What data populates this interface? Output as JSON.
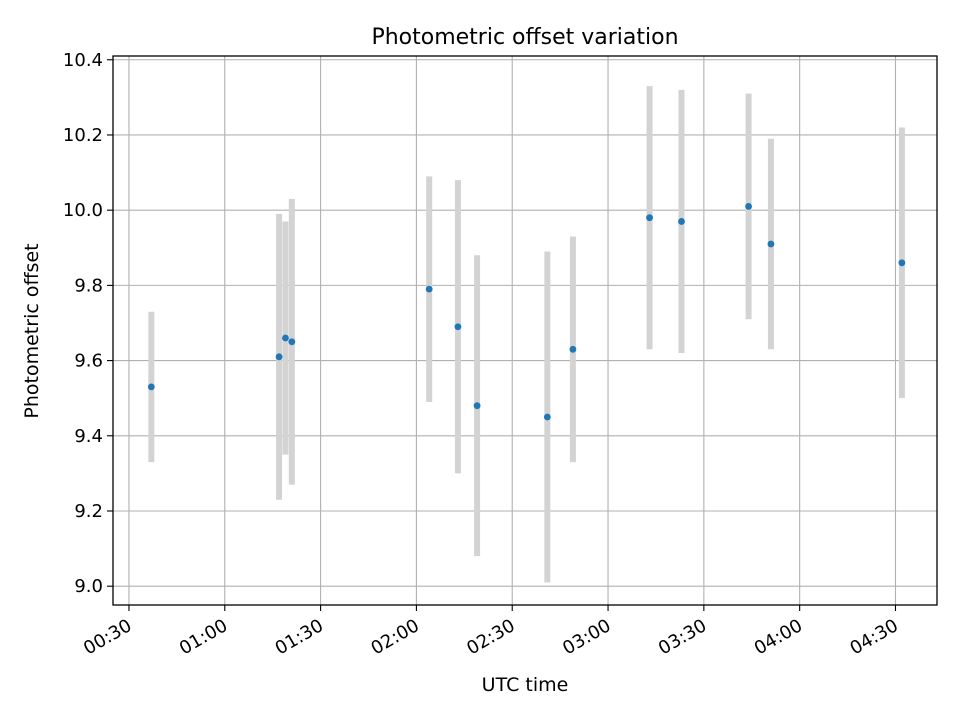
{
  "chart_data": {
    "type": "scatter",
    "title": "Photometric offset variation",
    "xlabel": "UTC time",
    "ylabel": "Photometric offset",
    "x_ticks": [
      "00:30",
      "01:00",
      "01:30",
      "02:00",
      "02:30",
      "03:00",
      "03:30",
      "04:00",
      "04:30"
    ],
    "y_ticks": [
      "9.0",
      "9.2",
      "9.4",
      "9.6",
      "9.8",
      "10.0",
      "10.2",
      "10.4"
    ],
    "xlim": [
      "00:25",
      "04:43"
    ],
    "ylim": [
      8.95,
      10.41
    ],
    "grid": true,
    "errorbar_color": "#d3d3d3",
    "point_color": "#1f77b4",
    "points": [
      {
        "time": "00:37",
        "value": 9.53,
        "err": 0.2
      },
      {
        "time": "01:17",
        "value": 9.61,
        "err": 0.38
      },
      {
        "time": "01:19",
        "value": 9.66,
        "err": 0.31
      },
      {
        "time": "01:21",
        "value": 9.65,
        "err": 0.38
      },
      {
        "time": "02:04",
        "value": 9.79,
        "err": 0.3
      },
      {
        "time": "02:13",
        "value": 9.69,
        "err": 0.39
      },
      {
        "time": "02:19",
        "value": 9.48,
        "err": 0.4
      },
      {
        "time": "02:41",
        "value": 9.45,
        "err": 0.44
      },
      {
        "time": "02:49",
        "value": 9.63,
        "err": 0.3
      },
      {
        "time": "03:13",
        "value": 9.98,
        "err": 0.35
      },
      {
        "time": "03:23",
        "value": 9.97,
        "err": 0.35
      },
      {
        "time": "03:44",
        "value": 10.01,
        "err": 0.3
      },
      {
        "time": "03:51",
        "value": 9.91,
        "err": 0.28
      },
      {
        "time": "04:32",
        "value": 9.86,
        "err": 0.36
      }
    ]
  }
}
